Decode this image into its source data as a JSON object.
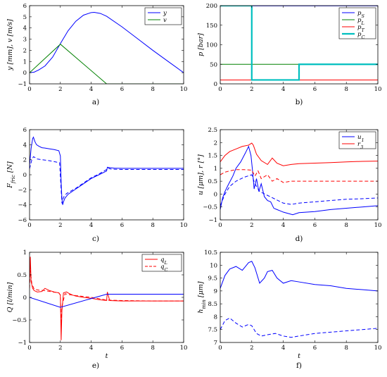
{
  "figure": {
    "panels": [
      {
        "id": "a",
        "caption": "a)",
        "chart_data": {
          "type": "line",
          "xlabel": "",
          "ylabel": "y [mm], v [m/s]",
          "xlim": [
            0,
            10
          ],
          "ylim": [
            -1,
            6
          ],
          "xticks": [
            "0",
            "2",
            "4",
            "6",
            "8",
            "10"
          ],
          "yticks": [
            "−1",
            "0",
            "1",
            "2",
            "3",
            "4",
            "5",
            "6"
          ],
          "legend": "top-right",
          "series": [
            {
              "name": "y",
              "color": "#0000ff",
              "dash": "solid",
              "x": [
                0,
                0.3,
                0.6,
                1.0,
                1.5,
                2.0,
                2.5,
                3.0,
                3.5,
                4.0,
                4.2,
                4.6,
                5.0,
                6.0,
                7.0,
                8.0,
                9.0,
                10.0
              ],
              "y": [
                0,
                0.05,
                0.25,
                0.6,
                1.4,
                2.6,
                3.75,
                4.6,
                5.15,
                5.38,
                5.4,
                5.3,
                5.05,
                4.1,
                3.05,
                2.0,
                1.0,
                0.0
              ]
            },
            {
              "name": "v",
              "color": "#008000",
              "dash": "solid",
              "x": [
                0,
                2.0,
                5.0,
                10.0
              ],
              "y": [
                0,
                2.55,
                -1.0,
                -1.0
              ]
            }
          ]
        }
      },
      {
        "id": "b",
        "caption": "b)",
        "chart_data": {
          "type": "line",
          "xlabel": "",
          "ylabel": "p [bar]",
          "xlim": [
            0,
            10
          ],
          "ylim": [
            0,
            200
          ],
          "xticks": [
            "0",
            "2",
            "4",
            "6",
            "8",
            "10"
          ],
          "yticks": [
            "0",
            "50",
            "100",
            "150",
            "200"
          ],
          "legend": "top-right",
          "series": [
            {
              "name": "pS",
              "color": "#0000ff",
              "dash": "solid",
              "width": 1,
              "x": [
                0,
                10
              ],
              "y": [
                199.5,
                199.5
              ]
            },
            {
              "name": "pL",
              "color": "#008000",
              "dash": "solid",
              "width": 1,
              "x": [
                0,
                10
              ],
              "y": [
                50,
                50
              ]
            },
            {
              "name": "pT",
              "color": "#ff0000",
              "dash": "solid",
              "width": 1,
              "x": [
                0,
                10
              ],
              "y": [
                10,
                10
              ]
            },
            {
              "name": "pC",
              "color": "#00bfbf",
              "dash": "solid",
              "width": 2.2,
              "x": [
                0,
                2,
                2,
                5,
                5,
                10
              ],
              "y": [
                200,
                200,
                10,
                10,
                50,
                50
              ]
            }
          ]
        }
      },
      {
        "id": "c",
        "caption": "c)",
        "chart_data": {
          "type": "line",
          "xlabel": "",
          "ylabel": "F_fric [N]",
          "xlim": [
            0,
            10
          ],
          "ylim": [
            -6,
            6
          ],
          "xticks": [
            "0",
            "2",
            "4",
            "6",
            "8",
            "10"
          ],
          "yticks": [
            "−6",
            "−4",
            "−2",
            "0",
            "2",
            "4",
            "6"
          ],
          "series": [
            {
              "name": "",
              "color": "#0000ff",
              "dash": "solid",
              "x": [
                0,
                0.1,
                0.2,
                0.25,
                0.35,
                0.45,
                0.6,
                0.8,
                1.0,
                1.3,
                1.6,
                1.9,
                2.0,
                2.05,
                2.1,
                2.15,
                2.2,
                2.3,
                2.5,
                3.0,
                3.5,
                4.0,
                4.5,
                5.0,
                5.05,
                5.2,
                5.5,
                6.0,
                7.0,
                8.0,
                9.0,
                10.0
              ],
              "y": [
                1.2,
                3.5,
                4.8,
                5.0,
                4.4,
                4.0,
                3.8,
                3.6,
                3.55,
                3.45,
                3.35,
                3.2,
                2.5,
                -1.0,
                -3.2,
                -4.0,
                -3.6,
                -3.1,
                -2.6,
                -1.9,
                -1.2,
                -0.5,
                0.0,
                0.5,
                1.0,
                0.95,
                0.88,
                0.85,
                0.85,
                0.85,
                0.85,
                0.85
              ]
            },
            {
              "name": "",
              "color": "#0000ff",
              "dash": "dashed",
              "x": [
                0,
                0.15,
                0.25,
                0.35,
                0.5,
                0.8,
                1.2,
                1.6,
                1.95,
                2.05,
                2.1,
                2.15,
                2.2,
                2.4,
                3.0,
                3.5,
                4.0,
                4.5,
                5.0,
                5.05,
                5.3,
                6.0,
                7.0,
                8.0,
                9.0,
                10.0
              ],
              "y": [
                0.8,
                2.0,
                2.4,
                2.3,
                2.1,
                2.0,
                1.9,
                1.75,
                1.6,
                -2.0,
                -3.8,
                -3.5,
                -3.0,
                -2.5,
                -1.8,
                -1.1,
                -0.4,
                0.1,
                0.7,
                0.9,
                0.75,
                0.7,
                0.7,
                0.7,
                0.7,
                0.7
              ]
            }
          ]
        }
      },
      {
        "id": "d",
        "caption": "d)",
        "chart_data": {
          "type": "line",
          "xlabel": "",
          "ylabel": "u [μm], r [°]",
          "xlim": [
            0,
            10
          ],
          "ylim": [
            -1,
            2.5
          ],
          "xticks": [
            "0",
            "2",
            "4",
            "6",
            "8",
            "10"
          ],
          "yticks": [
            "−1",
            "−0.5",
            "0",
            "0.5",
            "1",
            "1.5",
            "2",
            "2.5"
          ],
          "legend": "top-right",
          "series": [
            {
              "name": "u1",
              "color": "#0000ff",
              "dash": "solid",
              "x": [
                0,
                0.15,
                0.3,
                0.5,
                0.8,
                1.0,
                1.3,
                1.6,
                1.8,
                1.95,
                2.05,
                2.15,
                2.3,
                2.45,
                2.6,
                2.8,
                3.0,
                3.2,
                3.4,
                3.6,
                3.8,
                4.0,
                4.3,
                4.6,
                5.0,
                5.5,
                6.0,
                7.0,
                8.0,
                9.0,
                10.0
              ],
              "y": [
                -0.6,
                -0.15,
                0.1,
                0.35,
                0.7,
                1.0,
                1.25,
                1.6,
                1.85,
                1.5,
                0.9,
                0.2,
                0.6,
                0.1,
                0.4,
                -0.1,
                -0.25,
                -0.3,
                -0.55,
                -0.6,
                -0.65,
                -0.7,
                -0.75,
                -0.8,
                -0.72,
                -0.7,
                -0.68,
                -0.6,
                -0.55,
                -0.5,
                -0.45
              ]
            },
            {
              "name": "",
              "color": "#0000ff",
              "dash": "dashed",
              "x": [
                0,
                0.3,
                0.6,
                1.0,
                1.5,
                2.0,
                2.2,
                2.5,
                3.0,
                3.5,
                4.0,
                4.5,
                5.0,
                6.0,
                7.0,
                8.0,
                9.0,
                10.0
              ],
              "y": [
                -0.45,
                0.0,
                0.3,
                0.5,
                0.65,
                0.75,
                0.4,
                0.1,
                -0.05,
                -0.2,
                -0.35,
                -0.4,
                -0.35,
                -0.3,
                -0.25,
                -0.2,
                -0.18,
                -0.15
              ]
            },
            {
              "name": "r3",
              "color": "#ff0000",
              "dash": "solid",
              "x": [
                0,
                0.3,
                0.6,
                1.0,
                1.4,
                1.8,
                2.0,
                2.1,
                2.3,
                2.6,
                3.0,
                3.3,
                3.6,
                4.0,
                4.5,
                5.0,
                6.0,
                7.0,
                8.0,
                9.0,
                10.0
              ],
              "y": [
                1.25,
                1.5,
                1.65,
                1.75,
                1.85,
                1.9,
                1.98,
                1.9,
                1.55,
                1.3,
                1.15,
                1.4,
                1.2,
                1.1,
                1.15,
                1.18,
                1.2,
                1.22,
                1.25,
                1.27,
                1.28
              ]
            },
            {
              "name": "",
              "color": "#ff0000",
              "dash": "dashed",
              "x": [
                0,
                0.3,
                0.6,
                1.0,
                1.5,
                2.0,
                2.2,
                2.4,
                2.6,
                3.0,
                3.3,
                3.6,
                4.0,
                4.5,
                5.0,
                6.0,
                7.0,
                8.0,
                9.0,
                10.0
              ],
              "y": [
                0.75,
                0.85,
                0.9,
                0.95,
                0.95,
                0.93,
                0.7,
                0.9,
                0.6,
                0.75,
                0.5,
                0.6,
                0.45,
                0.5,
                0.5,
                0.5,
                0.5,
                0.5,
                0.5,
                0.5
              ]
            }
          ]
        }
      },
      {
        "id": "e",
        "caption": "e)",
        "chart_data": {
          "type": "line",
          "xlabel": "t",
          "ylabel": "Q [l/min]",
          "xlim": [
            0,
            10
          ],
          "ylim": [
            -1,
            1
          ],
          "xticks": [
            "0",
            "2",
            "4",
            "6",
            "8",
            "10"
          ],
          "yticks": [
            "−1",
            "−0.5",
            "0",
            "0.5",
            "1"
          ],
          "legend": "top-right",
          "series": [
            {
              "name": "qL",
              "color": "#ff0000",
              "dash": "solid",
              "x": [
                0,
                0.05,
                0.1,
                0.2,
                0.3,
                0.5,
                0.8,
                1.0,
                1.3,
                1.6,
                1.9,
                2.0,
                2.05,
                2.1,
                2.2,
                2.4,
                2.6,
                2.8,
                3.0,
                3.5,
                4.0,
                4.5,
                5.0,
                5.05,
                5.2,
                6.0,
                7.0,
                8.0,
                9.0,
                10.0
              ],
              "y": [
                0.3,
                0.9,
                0.35,
                0.2,
                0.15,
                0.12,
                0.13,
                0.2,
                0.15,
                0.12,
                0.1,
                0.05,
                -0.95,
                -0.3,
                0.1,
                0.12,
                0.08,
                0.05,
                0.03,
                0.0,
                -0.02,
                -0.05,
                -0.07,
                0.12,
                -0.07,
                -0.08,
                -0.08,
                -0.08,
                -0.08,
                -0.08
              ]
            },
            {
              "name": "qC",
              "color": "#ff0000",
              "dash": "dashed",
              "x": [
                0,
                0.05,
                0.15,
                0.3,
                0.6,
                1.0,
                1.5,
                1.9,
                2.0,
                2.05,
                2.1,
                2.3,
                2.6,
                3.0,
                3.5,
                4.0,
                5.0,
                6.0,
                8.0,
                10.0
              ],
              "y": [
                0.2,
                0.6,
                0.3,
                0.18,
                0.16,
                0.15,
                0.12,
                0.1,
                0.05,
                -0.6,
                -0.2,
                0.08,
                0.06,
                0.04,
                0.02,
                0.0,
                -0.06,
                -0.07,
                -0.08,
                -0.08
              ]
            },
            {
              "name": "",
              "color": "#0000ff",
              "dash": "solid",
              "x": [
                0,
                2.0,
                5.0,
                10.0
              ],
              "y": [
                0.0,
                -0.22,
                0.07,
                0.07
              ]
            }
          ]
        }
      },
      {
        "id": "f",
        "caption": "f)",
        "chart_data": {
          "type": "line",
          "xlabel": "t",
          "ylabel": "h_min [μm]",
          "xlim": [
            0,
            10
          ],
          "ylim": [
            7,
            10.5
          ],
          "xticks": [
            "0",
            "2",
            "4",
            "6",
            "8",
            "10"
          ],
          "yticks": [
            "7",
            "7.5",
            "8",
            "8.5",
            "9",
            "9.5",
            "10",
            "10.5"
          ],
          "series": [
            {
              "name": "",
              "color": "#0000ff",
              "dash": "solid",
              "x": [
                0,
                0.3,
                0.6,
                1.0,
                1.4,
                1.8,
                2.0,
                2.2,
                2.5,
                2.8,
                3.0,
                3.3,
                3.6,
                4.0,
                4.5,
                5.0,
                6.0,
                7.0,
                8.0,
                9.0,
                10.0
              ],
              "y": [
                9.1,
                9.6,
                9.85,
                9.95,
                9.8,
                10.1,
                10.15,
                9.9,
                9.3,
                9.5,
                9.75,
                9.8,
                9.5,
                9.3,
                9.4,
                9.35,
                9.25,
                9.2,
                9.1,
                9.05,
                9.0
              ]
            },
            {
              "name": "",
              "color": "#0000ff",
              "dash": "dashed",
              "x": [
                0,
                0.3,
                0.6,
                1.0,
                1.4,
                1.8,
                2.0,
                2.3,
                2.6,
                3.0,
                3.5,
                4.0,
                4.5,
                5.0,
                6.0,
                7.0,
                8.0,
                9.0,
                10.0
              ],
              "y": [
                7.5,
                7.85,
                7.95,
                7.75,
                7.6,
                7.7,
                7.65,
                7.35,
                7.25,
                7.3,
                7.35,
                7.25,
                7.2,
                7.25,
                7.35,
                7.4,
                7.45,
                7.5,
                7.55
              ]
            }
          ]
        }
      }
    ]
  }
}
